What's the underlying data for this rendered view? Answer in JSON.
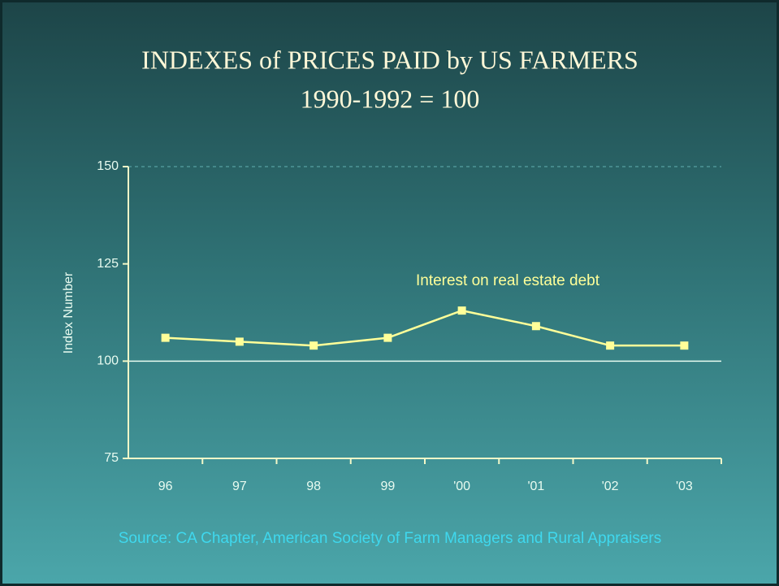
{
  "chart_data": {
    "type": "line",
    "title": "INDEXES of PRICES PAID by US FARMERS",
    "subtitle": "1990-1992 = 100",
    "ylabel": "Index Number",
    "categories": [
      "96",
      "97",
      "98",
      "99",
      "'00",
      "'01",
      "'02",
      "'03"
    ],
    "series": [
      {
        "name": "Interest on real estate debt",
        "color": "#ffff99",
        "values": [
          106,
          105,
          104,
          106,
          113,
          109,
          104,
          104
        ]
      }
    ],
    "ylim": [
      75,
      150
    ],
    "yticks": [
      75,
      100,
      125,
      150
    ],
    "hline": 100,
    "source": "Source: CA Chapter, American Society of Farm Managers and Rural Appraisers"
  }
}
